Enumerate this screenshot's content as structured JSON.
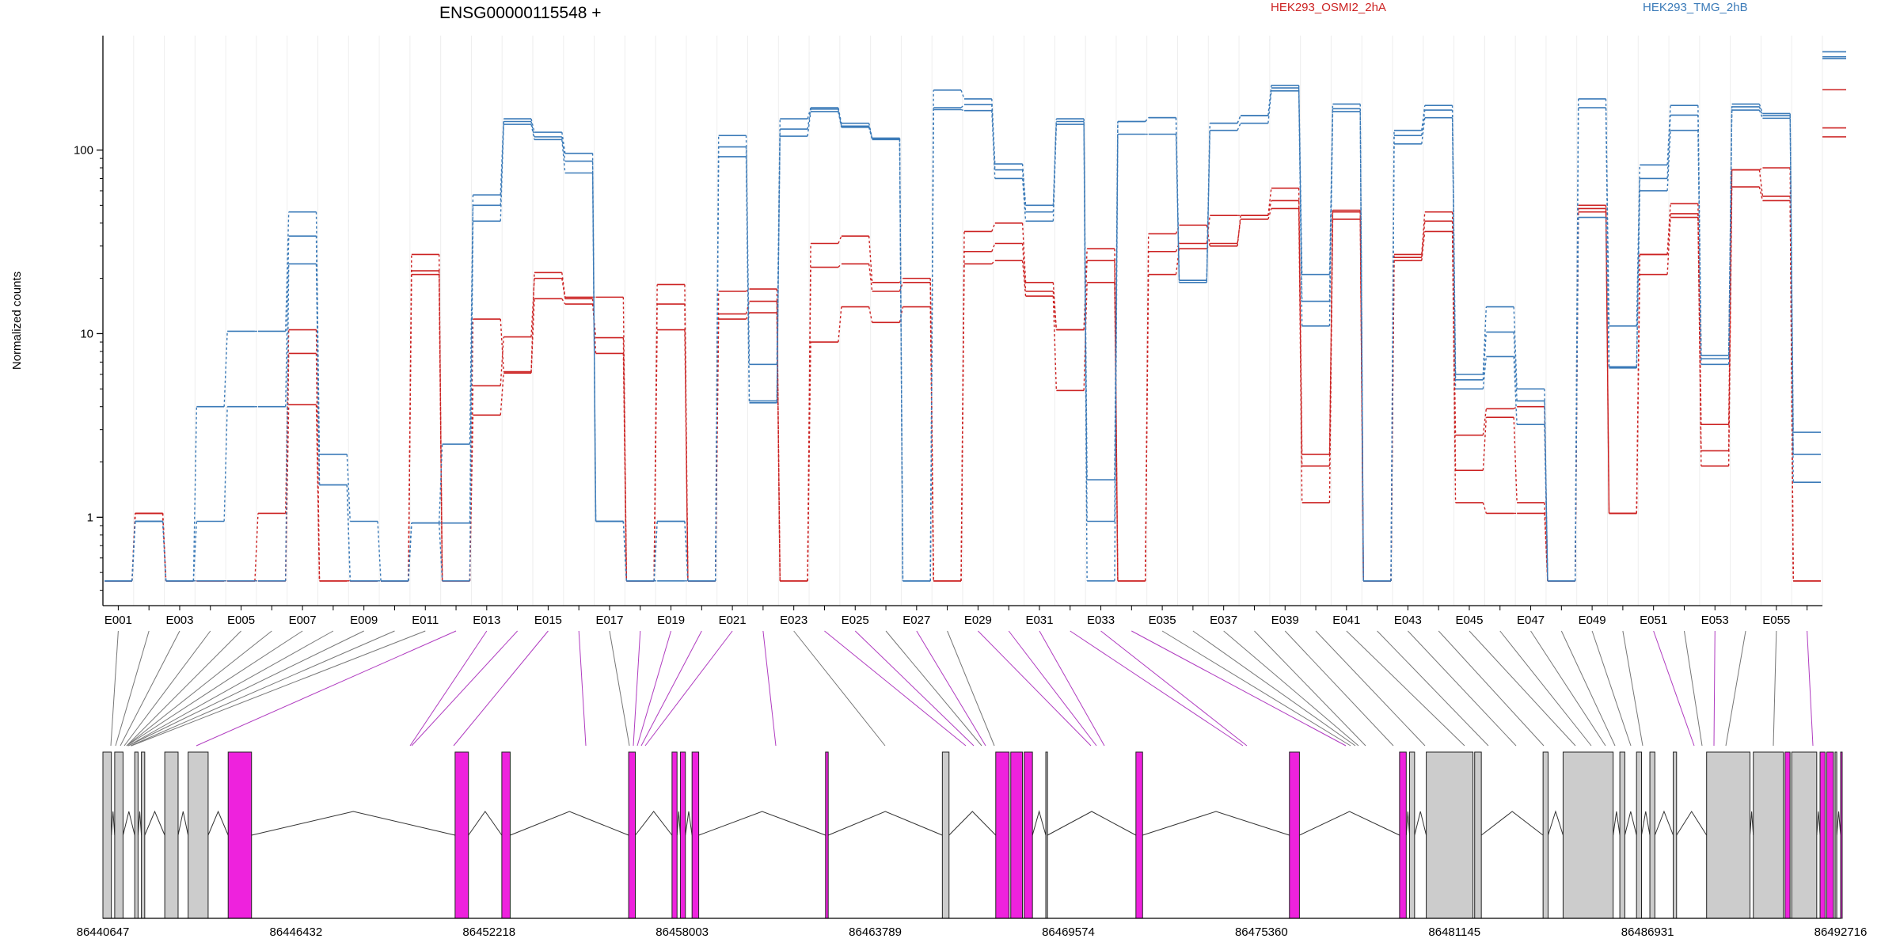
{
  "chart_data": {
    "type": "line",
    "title": "ENSG00000115548 +",
    "ylabel": "Normalized counts",
    "y_scale": "log",
    "ylim": [
      0.33,
      420
    ],
    "yticks": [
      1,
      10,
      100
    ],
    "exons": [
      "E001",
      "E002",
      "E003",
      "E004",
      "E005",
      "E006",
      "E007",
      "E008",
      "E009",
      "E010",
      "E011",
      "E012",
      "E013",
      "E014",
      "E015",
      "E016",
      "E017",
      "E018",
      "E019",
      "E020",
      "E021",
      "E022",
      "E023",
      "E024",
      "E025",
      "E026",
      "E027",
      "E028",
      "E029",
      "E030",
      "E031",
      "E032",
      "E033",
      "E034",
      "E035",
      "E036",
      "E037",
      "E038",
      "E039",
      "E040",
      "E041",
      "E042",
      "E043",
      "E044",
      "E045",
      "E046",
      "E047",
      "E048",
      "E049",
      "E050",
      "E051",
      "E052",
      "E053",
      "E054",
      "E055",
      "E056"
    ],
    "exon_tick_labels": [
      "E001",
      "E003",
      "E005",
      "E007",
      "E009",
      "E011",
      "E013",
      "E015",
      "E017",
      "E019",
      "E021",
      "E023",
      "E025",
      "E027",
      "E029",
      "E031",
      "E033",
      "E035",
      "E037",
      "E039",
      "E041",
      "E043",
      "E045",
      "E047",
      "E049",
      "E051",
      "E053",
      "E055"
    ],
    "groups": [
      {
        "name": "HEK293_OSMI2_2hA",
        "color": "#cc2222"
      },
      {
        "name": "HEK293_TMG_2hB",
        "color": "#3a7ab8"
      }
    ],
    "series": [
      {
        "group": 1,
        "values": [
          0.45,
          1.05,
          0.45,
          0.45,
          0.45,
          0.45,
          7.8,
          0.45,
          0.45,
          0.45,
          21,
          0.45,
          3.6,
          6.1,
          15.5,
          14.5,
          9.5,
          0.45,
          14.5,
          0.45,
          12,
          13,
          0.45,
          9,
          14,
          11.5,
          14,
          0.45,
          24,
          25,
          16,
          4.9,
          19,
          0.45,
          21,
          29,
          31,
          42,
          48,
          1.2,
          42,
          0.45,
          25,
          36,
          1.2,
          1.05,
          1.05,
          0.45,
          46,
          1.05,
          21,
          43,
          1.9,
          63,
          53,
          0.45
        ]
      },
      {
        "group": 1,
        "values": [
          0.45,
          1.05,
          0.45,
          0.45,
          0.45,
          0.45,
          4.1,
          0.45,
          0.45,
          0.45,
          22,
          0.45,
          5.2,
          9.6,
          20,
          15.5,
          7.8,
          0.45,
          10.5,
          0.45,
          12.8,
          15,
          0.45,
          23,
          24,
          17,
          19,
          0.45,
          28,
          31,
          17,
          10.5,
          25,
          0.45,
          28,
          31,
          44,
          44,
          53,
          1.9,
          46,
          0.45,
          26,
          41,
          1.8,
          3.5,
          1.2,
          0.45,
          48,
          1.05,
          27,
          45,
          2.3,
          78,
          56,
          0.45
        ]
      },
      {
        "group": 1,
        "values": [
          0.45,
          1.05,
          0.45,
          0.45,
          0.45,
          1.05,
          10.5,
          0.45,
          0.45,
          0.45,
          27,
          0.45,
          12,
          6.2,
          21.5,
          15.8,
          15.8,
          0.45,
          18.5,
          0.45,
          17,
          17.5,
          0.45,
          31,
          34,
          19,
          20,
          0.45,
          36,
          40,
          19,
          10.5,
          29,
          0.45,
          35,
          39,
          30,
          44,
          62,
          2.2,
          47,
          0.45,
          27,
          46,
          2.8,
          3.9,
          4.0,
          0.45,
          50,
          1.05,
          27,
          51,
          3.2,
          78,
          80,
          0.45
        ]
      },
      {
        "group": 2,
        "values": [
          0.45,
          0.95,
          0.45,
          0.45,
          0.45,
          0.45,
          24,
          1.5,
          0.45,
          0.45,
          0.93,
          0.45,
          41,
          138,
          114,
          75,
          0.95,
          0.45,
          0.45,
          0.45,
          92,
          4.2,
          119,
          162,
          133,
          114,
          0.45,
          166,
          164,
          70,
          41,
          138,
          0.45,
          122,
          122,
          19,
          128,
          140,
          210,
          11,
          162,
          0.45,
          108,
          150,
          5.0,
          7.5,
          3.2,
          0.45,
          43,
          6.5,
          60,
          128,
          6.8,
          165,
          149,
          1.55
        ]
      },
      {
        "group": 2,
        "values": [
          0.45,
          0.95,
          0.45,
          0.95,
          4.0,
          4.0,
          34,
          1.5,
          0.45,
          0.45,
          0.93,
          0.93,
          50,
          143,
          118,
          87,
          0.95,
          0.45,
          0.95,
          0.45,
          104,
          4.3,
          130,
          167,
          135,
          116,
          0.45,
          170,
          177,
          78,
          46,
          143,
          0.95,
          143,
          150,
          19.5,
          140,
          154,
          218,
          15,
          168,
          0.45,
          120,
          165,
          5.6,
          10.2,
          4.3,
          0.45,
          170,
          6.6,
          70,
          155,
          7.3,
          172,
          154,
          2.2
        ]
      },
      {
        "group": 2,
        "values": [
          0.45,
          0.95,
          0.45,
          4.0,
          10.3,
          10.3,
          46,
          2.2,
          0.95,
          0.45,
          0.93,
          2.5,
          57,
          148,
          125,
          96,
          0.95,
          0.45,
          0.95,
          0.45,
          120,
          6.8,
          148,
          170,
          140,
          116,
          0.45,
          212,
          190,
          84,
          50,
          148,
          1.6,
          143,
          150,
          19.5,
          140,
          154,
          225,
          21,
          178,
          0.45,
          128,
          175,
          6.0,
          14,
          5.0,
          0.45,
          190,
          11,
          83,
          175,
          7.6,
          178,
          158,
          2.9
        ]
      }
    ],
    "right_end_values": {
      "group1": [
        118,
        132,
        213
      ],
      "group2": [
        315,
        322,
        343
      ]
    },
    "genome_axis_ticks": [
      "86440647",
      "86446432",
      "86452218",
      "86458003",
      "86463789",
      "86469574",
      "86475360",
      "86481145",
      "86486931",
      "86492716"
    ],
    "genome_range": [
      86440647,
      86492716
    ]
  },
  "legend": {
    "group1_label": "HEK293_OSMI2_2hA",
    "group2_label": "HEK293_TMG_2hB"
  },
  "colors": {
    "group1": "#cc2222",
    "group2": "#3a7ab8",
    "highlight": "#ee22dd",
    "exon_box": "#cccccc"
  }
}
